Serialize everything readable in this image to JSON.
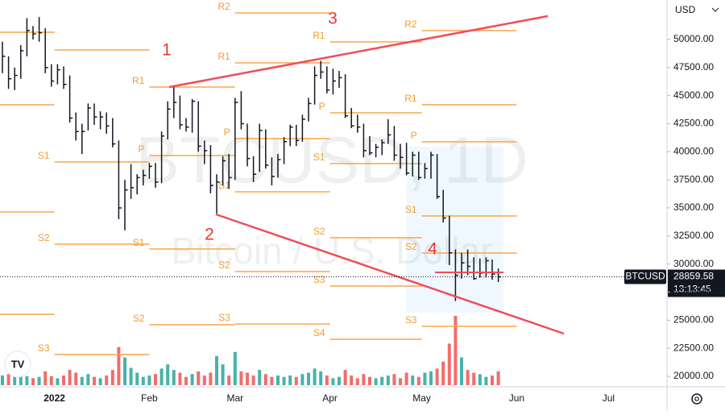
{
  "chart_data": {
    "type": "ohlc",
    "watermark_title": "BTCUSD, 1D",
    "watermark_subtitle": "Bitcoin / U.S. Dollar",
    "currency": "USD",
    "symbol": "BTCUSD",
    "countdown": "13:13:45",
    "ylim": [
      19067,
      53517
    ],
    "yticks": [
      {
        "value": 20000,
        "label": "20000.00"
      },
      {
        "value": 22500,
        "label": "22500.00"
      },
      {
        "value": 25000,
        "label": "25000.00"
      },
      {
        "value": 27500,
        "label": "27500.00"
      },
      {
        "value": 30000,
        "label": "30000.00"
      },
      {
        "value": 32500,
        "label": "32500.00"
      },
      {
        "value": 35000,
        "label": "35000.00"
      },
      {
        "value": 37500,
        "label": "37500.00"
      },
      {
        "value": 40000,
        "label": "40000.00"
      },
      {
        "value": 42500,
        "label": "42500.00"
      },
      {
        "value": 45000,
        "label": "45000.00"
      },
      {
        "value": 47500,
        "label": "47500.00"
      },
      {
        "value": 50000,
        "label": "50000.00"
      }
    ],
    "months": [
      "2022",
      "Feb",
      "Mar",
      "Apr",
      "May",
      "Jun",
      "Jul"
    ],
    "waves": [
      "1",
      "2",
      "3",
      "4"
    ],
    "bar_color": "#131722",
    "up_color": "#26a69a",
    "down_color": "#ef5350",
    "pivot_color": "#f7a54a",
    "high": [
      49800,
      48500,
      47500,
      49500,
      51900,
      51200,
      52000,
      51000,
      47800,
      47800,
      47600,
      46800,
      43500,
      42500,
      44300,
      44300,
      43600,
      43500,
      43000,
      41000,
      37500,
      38900,
      38000,
      38400,
      39000,
      39000,
      41800,
      44500,
      45900,
      45000,
      43000,
      44700,
      44500,
      41000,
      40600,
      38000,
      39600,
      39800,
      44800,
      45400,
      42500,
      39600,
      42500,
      42000,
      39500,
      39800,
      41300,
      42400,
      42400,
      43300,
      44800,
      47600,
      48100,
      47600,
      47400,
      47200,
      46900,
      43900,
      43300,
      42500,
      41400,
      40700,
      41100,
      42900,
      42300,
      40700,
      40800,
      40000,
      40000,
      39000,
      40000,
      39800,
      36600,
      34300,
      31300,
      31000,
      31300,
      30600,
      30500,
      30600,
      30400,
      29600
    ],
    "low": [
      47000,
      45600,
      45500,
      46500,
      48500,
      50000,
      49800,
      47000,
      45800,
      46000,
      45600,
      42600,
      41000,
      39800,
      41900,
      42400,
      42000,
      41600,
      40400,
      34000,
      33000,
      35800,
      36200,
      37000,
      37600,
      36800,
      37200,
      41100,
      43000,
      42000,
      41800,
      41700,
      40000,
      38900,
      36300,
      34500,
      37000,
      36700,
      37500,
      42000,
      38700,
      37300,
      38200,
      38500,
      37000,
      37700,
      38900,
      40500,
      40500,
      40900,
      42700,
      44200,
      46500,
      45200,
      45100,
      45700,
      43000,
      42100,
      41700,
      39500,
      39700,
      39500,
      39700,
      40700,
      39200,
      38500,
      37900,
      37800,
      37500,
      37600,
      37600,
      35800,
      33700,
      29900,
      26700,
      28700,
      29000,
      28600,
      28800,
      28800,
      28600,
      28400
    ],
    "close": [
      48500,
      46500,
      46800,
      49000,
      50800,
      50500,
      50600,
      47500,
      46300,
      47300,
      46000,
      43000,
      41800,
      41800,
      43900,
      43100,
      43100,
      42300,
      40700,
      35000,
      36600,
      36800,
      37700,
      37900,
      38700,
      37300,
      41400,
      43800,
      44400,
      42400,
      42200,
      44500,
      40500,
      40100,
      37000,
      37300,
      39200,
      37700,
      44400,
      42500,
      39400,
      38000,
      41900,
      38800,
      37800,
      39300,
      40900,
      42200,
      41000,
      42900,
      44300,
      46800,
      47100,
      45500,
      46300,
      46600,
      43200,
      42300,
      42200,
      40100,
      39900,
      40400,
      40800,
      41500,
      39700,
      39500,
      38100,
      39700,
      37700,
      38500,
      39700,
      36000,
      34100,
      31000,
      29000,
      30100,
      29800,
      28700,
      29200,
      30300,
      29100,
      28859.58
    ],
    "volume": [
      14,
      16,
      12,
      18,
      13,
      10,
      12,
      20,
      13,
      10,
      14,
      22,
      18,
      12,
      16,
      12,
      10,
      14,
      22,
      55,
      40,
      25,
      18,
      12,
      14,
      16,
      24,
      30,
      22,
      18,
      12,
      16,
      20,
      14,
      18,
      42,
      30,
      14,
      48,
      20,
      18,
      14,
      22,
      16,
      12,
      14,
      12,
      14,
      12,
      16,
      18,
      24,
      20,
      14,
      10,
      12,
      22,
      14,
      10,
      16,
      12,
      10,
      12,
      14,
      16,
      10,
      18,
      14,
      12,
      18,
      20,
      24,
      34,
      60,
      100,
      40,
      22,
      18,
      16,
      12,
      14,
      20
    ],
    "pivots": [
      {
        "levels": [
          {
            "label": null,
            "value": 50646
          },
          {
            "label": null,
            "value": 44187
          },
          {
            "label": null,
            "value": 34642
          },
          {
            "label": null,
            "value": 25527
          }
        ]
      },
      {
        "levels": [
          {
            "label": null,
            "value": 49067
          },
          {
            "label": "S1",
            "value": 39091
          },
          {
            "label": "S2",
            "value": 31771
          },
          {
            "label": "S3",
            "value": 21938
          }
        ]
      },
      {
        "levels": [
          {
            "label": "R1",
            "value": 45766
          },
          {
            "label": "P",
            "value": 39665
          },
          {
            "label": "S1",
            "value": 31340
          },
          {
            "label": "S2",
            "value": 24594
          }
        ]
      },
      {
        "levels": [
          {
            "label": "R2",
            "value": 52368
          },
          {
            "label": "R1",
            "value": 47919
          },
          {
            "label": "P",
            "value": 41172
          },
          {
            "label": "S1",
            "value": 36436
          },
          {
            "label": "S2",
            "value": 29330
          },
          {
            "label": "S3",
            "value": 24665
          }
        ]
      },
      {
        "levels": [
          {
            "label": "R1",
            "value": 49785
          },
          {
            "label": "P",
            "value": 43469
          },
          {
            "label": "S1",
            "value": 38948
          },
          {
            "label": "S2",
            "value": 32345
          },
          {
            "label": "S3",
            "value": 28039
          },
          {
            "label": "S4",
            "value": 23302
          }
        ]
      },
      {
        "levels": [
          {
            "label": "R2",
            "value": 50789
          },
          {
            "label": "R1",
            "value": 44187
          },
          {
            "label": "P",
            "value": 40885
          },
          {
            "label": "S1",
            "value": 34282
          },
          {
            "label": "S2",
            "value": 30981
          },
          {
            "label": "S3",
            "value": 24450
          }
        ]
      }
    ]
  }
}
